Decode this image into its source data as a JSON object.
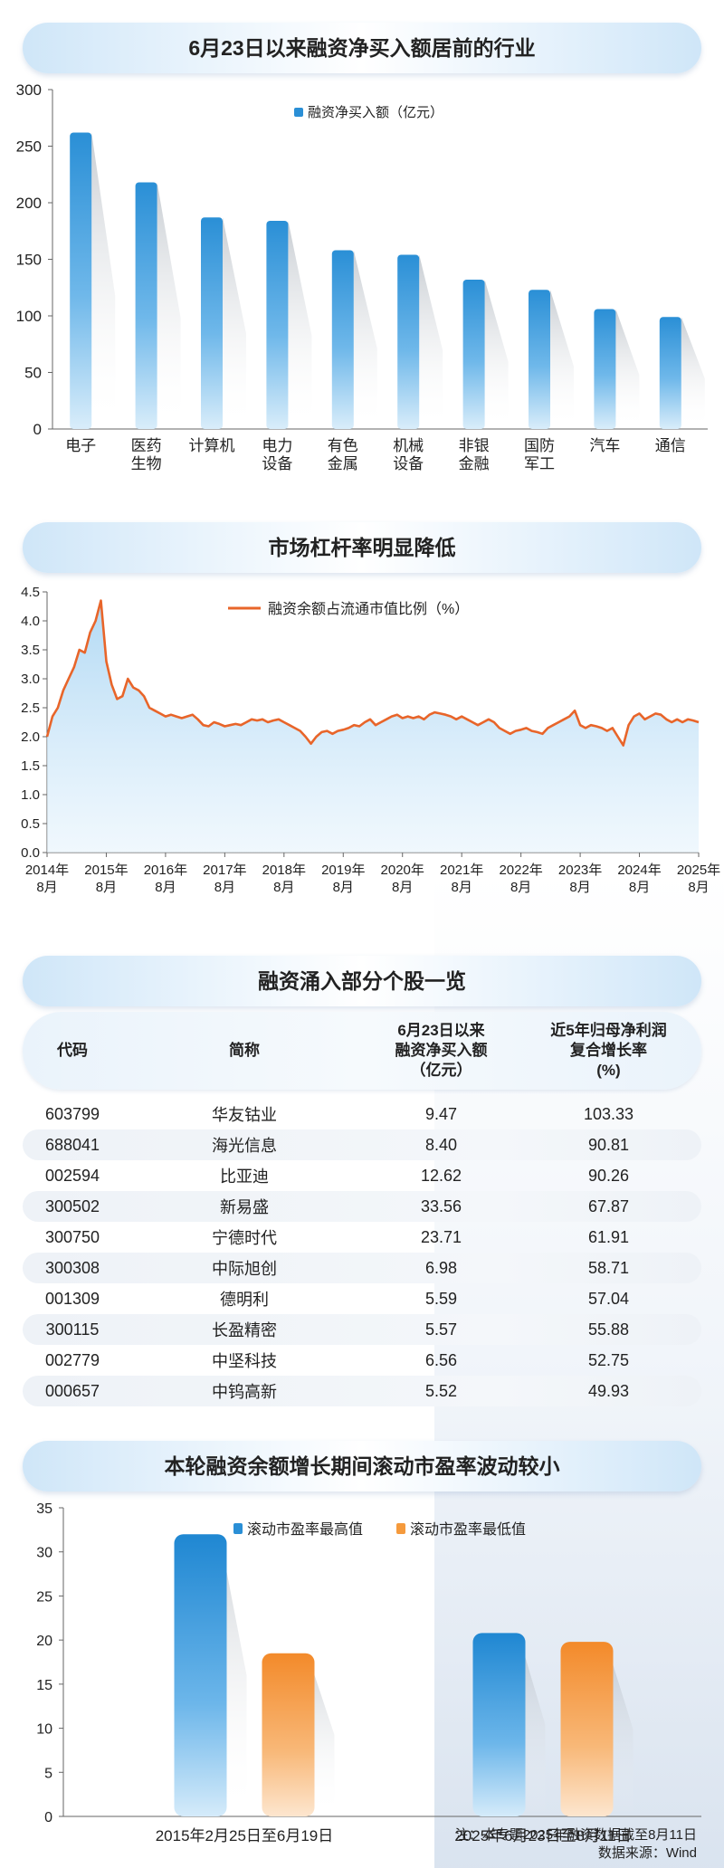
{
  "charts": {
    "bar_title": "6月23日以来融资净买入额居前的行业",
    "line_title": "市场杠杆率明显降低",
    "table_title": "融资涌入部分个股一览",
    "pe_title": "本轮融资余额增长期间滚动市盈率波动较小"
  },
  "chart_data": [
    {
      "type": "bar",
      "title": "6月23日以来融资净买入额居前的行业",
      "categories": [
        "电子",
        "医药生物",
        "计算机",
        "电力设备",
        "有色金属",
        "机械设备",
        "非银金融",
        "国防军工",
        "汽车",
        "通信"
      ],
      "category_lines": [
        [
          "电子"
        ],
        [
          "医药",
          "生物"
        ],
        [
          "计算机"
        ],
        [
          "电力",
          "设备"
        ],
        [
          "有色",
          "金属"
        ],
        [
          "机械",
          "设备"
        ],
        [
          "非银",
          "金融"
        ],
        [
          "国防",
          "军工"
        ],
        [
          "汽车"
        ],
        [
          "通信"
        ]
      ],
      "series": [
        {
          "name": "融资净买入额（亿元）",
          "values": [
            262,
            218,
            187,
            184,
            158,
            154,
            132,
            123,
            106,
            99
          ]
        }
      ],
      "ylim": [
        0,
        300
      ],
      "yticks": [
        0,
        50,
        100,
        150,
        200,
        250,
        300
      ],
      "legend_position": "top-center",
      "grid": false
    },
    {
      "type": "area",
      "title": "市场杠杆率明显降低",
      "series": [
        {
          "name": "融资余额占流通市值比例（%）",
          "x_start": "2014-08",
          "x_end": "2025-08",
          "values": [
            2.0,
            2.35,
            2.5,
            2.8,
            3.0,
            3.2,
            3.5,
            3.45,
            3.8,
            4.0,
            4.35,
            3.3,
            2.9,
            2.65,
            2.7,
            3.0,
            2.85,
            2.8,
            2.7,
            2.5,
            2.45,
            2.4,
            2.35,
            2.38,
            2.35,
            2.32,
            2.35,
            2.38,
            2.3,
            2.2,
            2.18,
            2.25,
            2.22,
            2.18,
            2.2,
            2.22,
            2.2,
            2.25,
            2.3,
            2.28,
            2.3,
            2.25,
            2.28,
            2.3,
            2.25,
            2.2,
            2.15,
            2.1,
            2.0,
            1.88,
            2.0,
            2.08,
            2.1,
            2.05,
            2.1,
            2.12,
            2.15,
            2.2,
            2.18,
            2.25,
            2.3,
            2.2,
            2.25,
            2.3,
            2.35,
            2.38,
            2.32,
            2.35,
            2.32,
            2.35,
            2.3,
            2.38,
            2.42,
            2.4,
            2.38,
            2.35,
            2.3,
            2.35,
            2.3,
            2.25,
            2.2,
            2.25,
            2.3,
            2.25,
            2.15,
            2.1,
            2.05,
            2.1,
            2.12,
            2.15,
            2.1,
            2.08,
            2.05,
            2.15,
            2.2,
            2.25,
            2.3,
            2.35,
            2.45,
            2.2,
            2.15,
            2.2,
            2.18,
            2.15,
            2.1,
            2.15,
            2.0,
            1.85,
            2.2,
            2.35,
            2.4,
            2.3,
            2.35,
            2.4,
            2.38,
            2.3,
            2.25,
            2.3,
            2.25,
            2.3,
            2.28,
            2.25
          ]
        }
      ],
      "xtick_labels": [
        [
          "2014年",
          "8月"
        ],
        [
          "2015年",
          "8月"
        ],
        [
          "2016年",
          "8月"
        ],
        [
          "2017年",
          "8月"
        ],
        [
          "2018年",
          "8月"
        ],
        [
          "2019年",
          "8月"
        ],
        [
          "2020年",
          "8月"
        ],
        [
          "2021年",
          "8月"
        ],
        [
          "2022年",
          "8月"
        ],
        [
          "2023年",
          "8月"
        ],
        [
          "2024年",
          "8月"
        ],
        [
          "2025年",
          "8月"
        ]
      ],
      "ylim": [
        0,
        4.5
      ],
      "yticks": [
        "0.0",
        "0.5",
        "1.0",
        "1.5",
        "2.0",
        "2.5",
        "3.0",
        "3.5",
        "4.0",
        "4.5"
      ],
      "legend_position": "top-center",
      "grid": false
    },
    {
      "type": "table",
      "title": "融资涌入部分个股一览",
      "columns": [
        [
          "代码"
        ],
        [
          "简称"
        ],
        [
          "6月23日以来",
          "融资净买入额",
          "（亿元）"
        ],
        [
          "近5年归母净利润",
          "复合增长率",
          "(%)"
        ]
      ],
      "rows": [
        [
          "603799",
          "华友钴业",
          "9.47",
          "103.33"
        ],
        [
          "688041",
          "海光信息",
          "8.40",
          "90.81"
        ],
        [
          "002594",
          "比亚迪",
          "12.62",
          "90.26"
        ],
        [
          "300502",
          "新易盛",
          "33.56",
          "67.87"
        ],
        [
          "300750",
          "宁德时代",
          "23.71",
          "61.91"
        ],
        [
          "300308",
          "中际旭创",
          "6.98",
          "58.71"
        ],
        [
          "001309",
          "德明利",
          "5.59",
          "57.04"
        ],
        [
          "300115",
          "长盈精密",
          "5.57",
          "55.88"
        ],
        [
          "002779",
          "中坚科技",
          "6.56",
          "52.75"
        ],
        [
          "000657",
          "中钨高新",
          "5.52",
          "49.93"
        ]
      ]
    },
    {
      "type": "bar",
      "title": "本轮融资余额增长期间滚动市盈率波动较小",
      "categories": [
        "2015年2月25日至6月19日",
        "2025年6月23日至8月11日"
      ],
      "series": [
        {
          "name": "滚动市盈率最高值",
          "color": "#2a8fd6",
          "values": [
            32,
            20.8
          ]
        },
        {
          "name": "滚动市盈率最低值",
          "color": "#f59a3c",
          "values": [
            18.5,
            19.8
          ]
        }
      ],
      "ylim": [
        0,
        35
      ],
      "yticks": [
        0,
        5,
        10,
        15,
        20,
        25,
        30,
        35
      ],
      "legend_position": "top-left",
      "grid": false
    }
  ],
  "footer": {
    "note": "注：本专题2025年融资数据截至8月11日",
    "source": "数据来源：Wind"
  }
}
